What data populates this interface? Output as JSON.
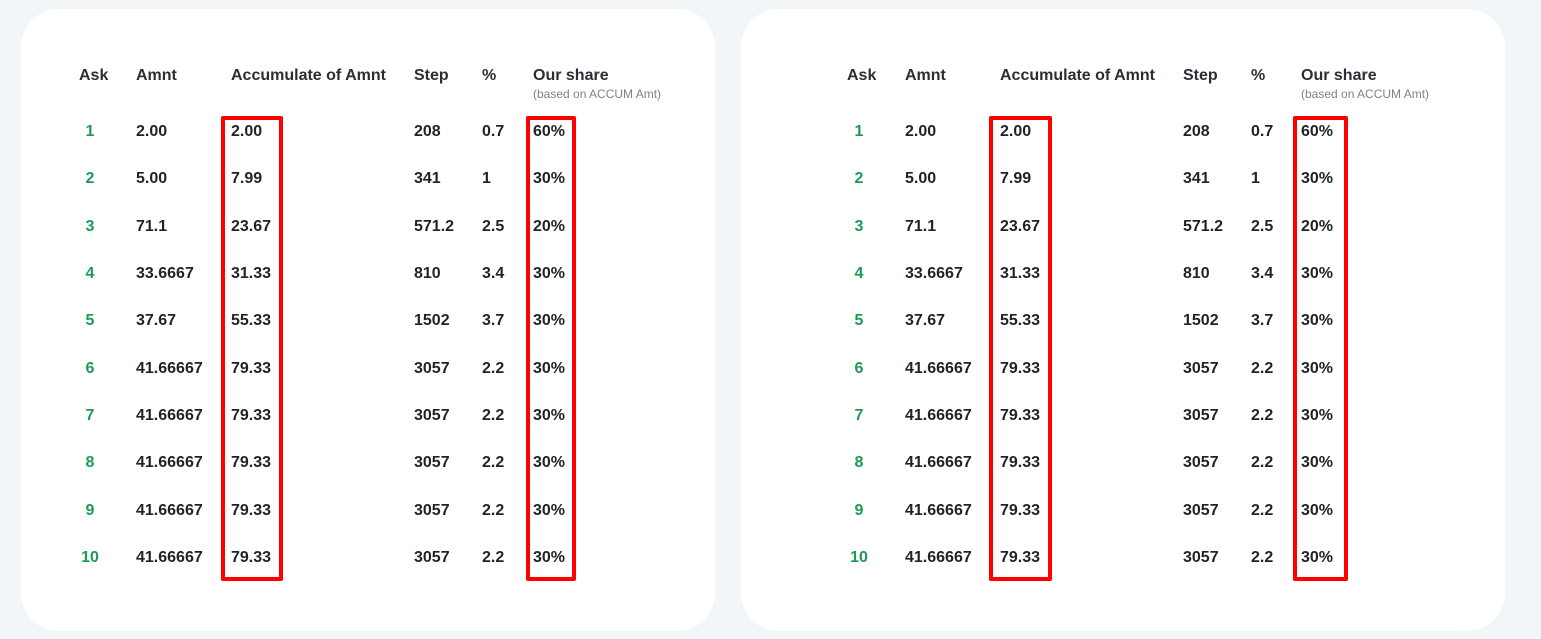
{
  "colors": {
    "ask": "#1f9a55",
    "text": "#1f2329",
    "highlight": "#ff0000"
  },
  "header": {
    "ask": "Ask",
    "amnt": "Amnt",
    "accum": "Accumulate of Amnt",
    "step": "Step",
    "pct": "%",
    "share": "Our share",
    "share_sub": "(based on ACCUM Amt)"
  },
  "rows": [
    {
      "ask": "1",
      "amnt": "2.00",
      "accum": "2.00",
      "step": "208",
      "pct": "0.7",
      "share": "60%"
    },
    {
      "ask": "2",
      "amnt": "5.00",
      "accum": "7.99",
      "step": "341",
      "pct": "1",
      "share": "30%"
    },
    {
      "ask": "3",
      "amnt": "71.1",
      "accum": "23.67",
      "step": "571.2",
      "pct": "2.5",
      "share": "20%"
    },
    {
      "ask": "4",
      "amnt": "33.6667",
      "accum": "31.33",
      "step": "810",
      "pct": "3.4",
      "share": "30%"
    },
    {
      "ask": "5",
      "amnt": "37.67",
      "accum": "55.33",
      "step": "1502",
      "pct": "3.7",
      "share": "30%"
    },
    {
      "ask": "6",
      "amnt": "41.66667",
      "accum": "79.33",
      "step": "3057",
      "pct": "2.2",
      "share": "30%"
    },
    {
      "ask": "7",
      "amnt": "41.66667",
      "accum": "79.33",
      "step": "3057",
      "pct": "2.2",
      "share": "30%"
    },
    {
      "ask": "8",
      "amnt": "41.66667",
      "accum": "79.33",
      "step": "3057",
      "pct": "2.2",
      "share": "30%"
    },
    {
      "ask": "9",
      "amnt": "41.66667",
      "accum": "79.33",
      "step": "3057",
      "pct": "2.2",
      "share": "30%"
    },
    {
      "ask": "10",
      "amnt": "41.66667",
      "accum": "79.33",
      "step": "3057",
      "pct": "2.2",
      "share": "30%"
    }
  ]
}
